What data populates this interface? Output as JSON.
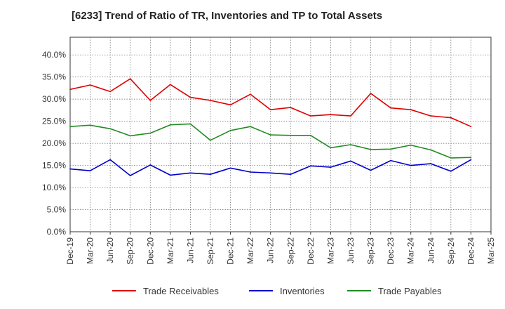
{
  "title": "[6233]  Trend of Ratio of TR, Inventories and TP to Total Assets",
  "chart_data": {
    "type": "line",
    "title": "[6233]  Trend of Ratio of TR, Inventories and TP to Total Assets",
    "xlabel": "",
    "ylabel": "",
    "ylim": [
      0,
      0.4
    ],
    "y_ticks": [
      "0.0%",
      "5.0%",
      "10.0%",
      "15.0%",
      "20.0%",
      "25.0%",
      "30.0%",
      "35.0%",
      "40.0%"
    ],
    "x_ticks": [
      "Dec-19",
      "Mar-20",
      "Jun-20",
      "Sep-20",
      "Dec-20",
      "Mar-21",
      "Jun-21",
      "Sep-21",
      "Dec-21",
      "Mar-22",
      "Jun-22",
      "Sep-22",
      "Dec-22",
      "Mar-23",
      "Jun-23",
      "Sep-23",
      "Dec-23",
      "Mar-24",
      "Jun-24",
      "Sep-24",
      "Dec-24",
      "Mar-25"
    ],
    "grid": true,
    "legend_position": "bottom",
    "series": [
      {
        "name": "Trade Receivables",
        "color": "#e00000",
        "values": [
          0.322,
          0.332,
          0.317,
          0.346,
          0.297,
          0.333,
          0.304,
          0.297,
          0.287,
          0.311,
          0.276,
          0.281,
          0.262,
          0.265,
          0.262,
          0.313,
          0.28,
          0.276,
          0.262,
          0.258,
          0.238
        ]
      },
      {
        "name": "Inventories",
        "color": "#0000cc",
        "values": [
          0.142,
          0.138,
          0.163,
          0.127,
          0.151,
          0.128,
          0.133,
          0.13,
          0.144,
          0.135,
          0.133,
          0.13,
          0.149,
          0.146,
          0.16,
          0.139,
          0.161,
          0.15,
          0.154,
          0.137,
          0.163
        ]
      },
      {
        "name": "Trade Payables",
        "color": "#228B22",
        "values": [
          0.238,
          0.241,
          0.233,
          0.217,
          0.223,
          0.242,
          0.244,
          0.207,
          0.229,
          0.238,
          0.219,
          0.218,
          0.218,
          0.19,
          0.197,
          0.186,
          0.187,
          0.196,
          0.185,
          0.167,
          0.168
        ]
      }
    ]
  }
}
